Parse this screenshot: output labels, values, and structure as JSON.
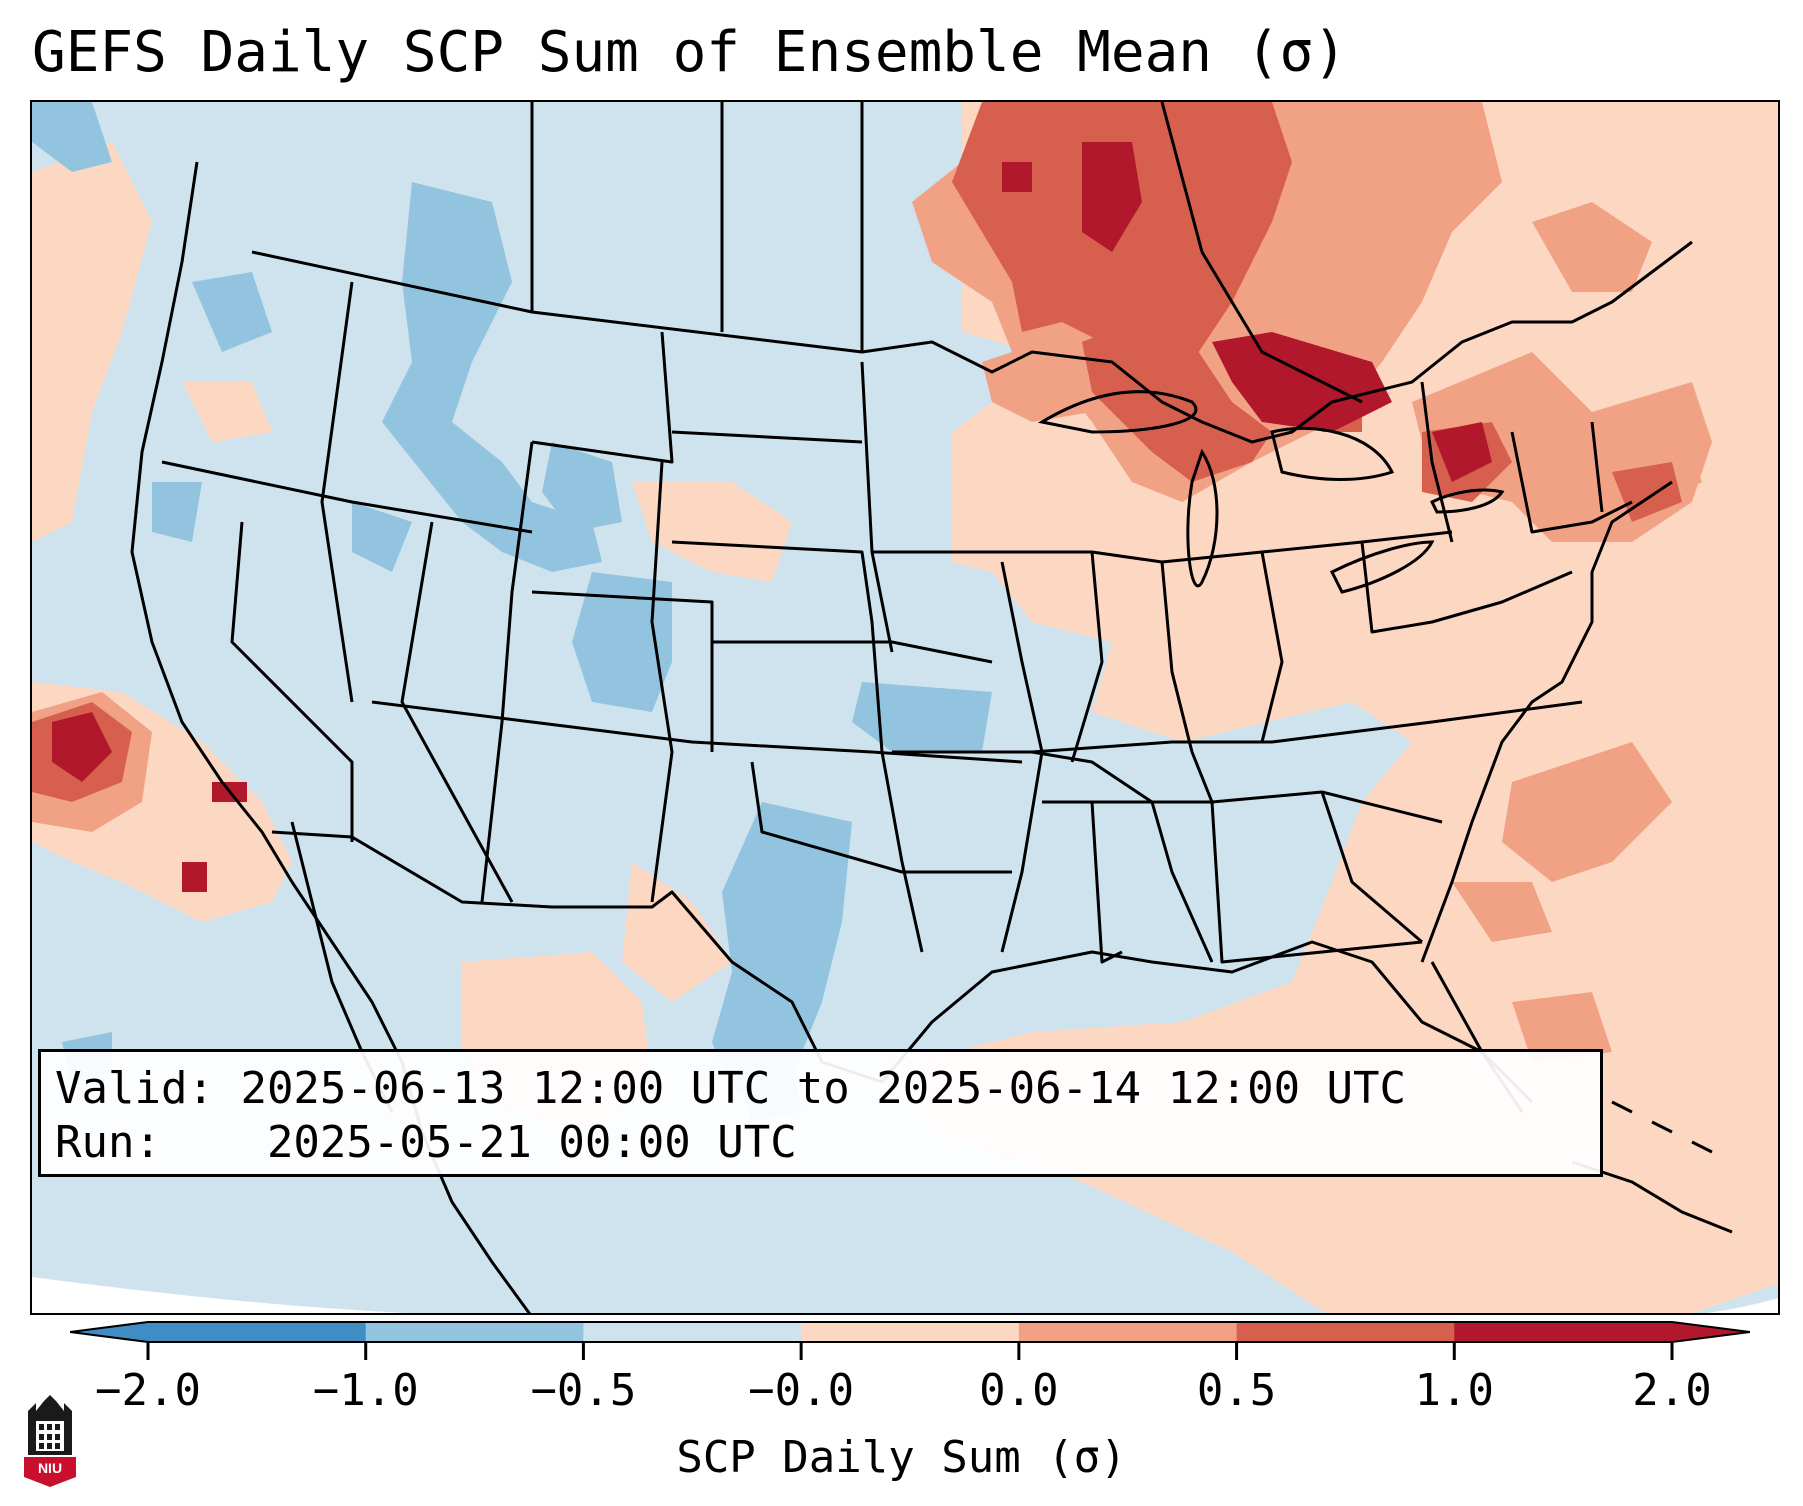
{
  "title": "GEFS Daily SCP Sum of Ensemble Mean (σ)",
  "info": {
    "valid_label": "Valid:",
    "valid_value": "2025-06-13 12:00 UTC to 2025-06-14 12:00 UTC",
    "run_label": "Run:",
    "run_value": "2025-05-21 00:00 UTC"
  },
  "colorbar": {
    "title": "SCP Daily Sum (σ)",
    "ticks": [
      "-2.0",
      "-1.0",
      "-0.5",
      "-0.0",
      "0.0",
      "0.5",
      "1.0",
      "2.0"
    ],
    "colors": [
      "#3f8dc4",
      "#93c4df",
      "#cfe3ef",
      "#fcd7c2",
      "#f1a285",
      "#d6604d",
      "#b2182b"
    ],
    "extend": "both"
  },
  "logo": {
    "label": "NIU"
  },
  "map": {
    "region": "Contiguous United States",
    "background_color": "#cfe3ef",
    "highlight_regions": [
      "Upper Midwest / Great Lakes",
      "Northeast",
      "Western Atlantic",
      "Gulf of Mexico",
      "Eastern Pacific"
    ]
  }
}
